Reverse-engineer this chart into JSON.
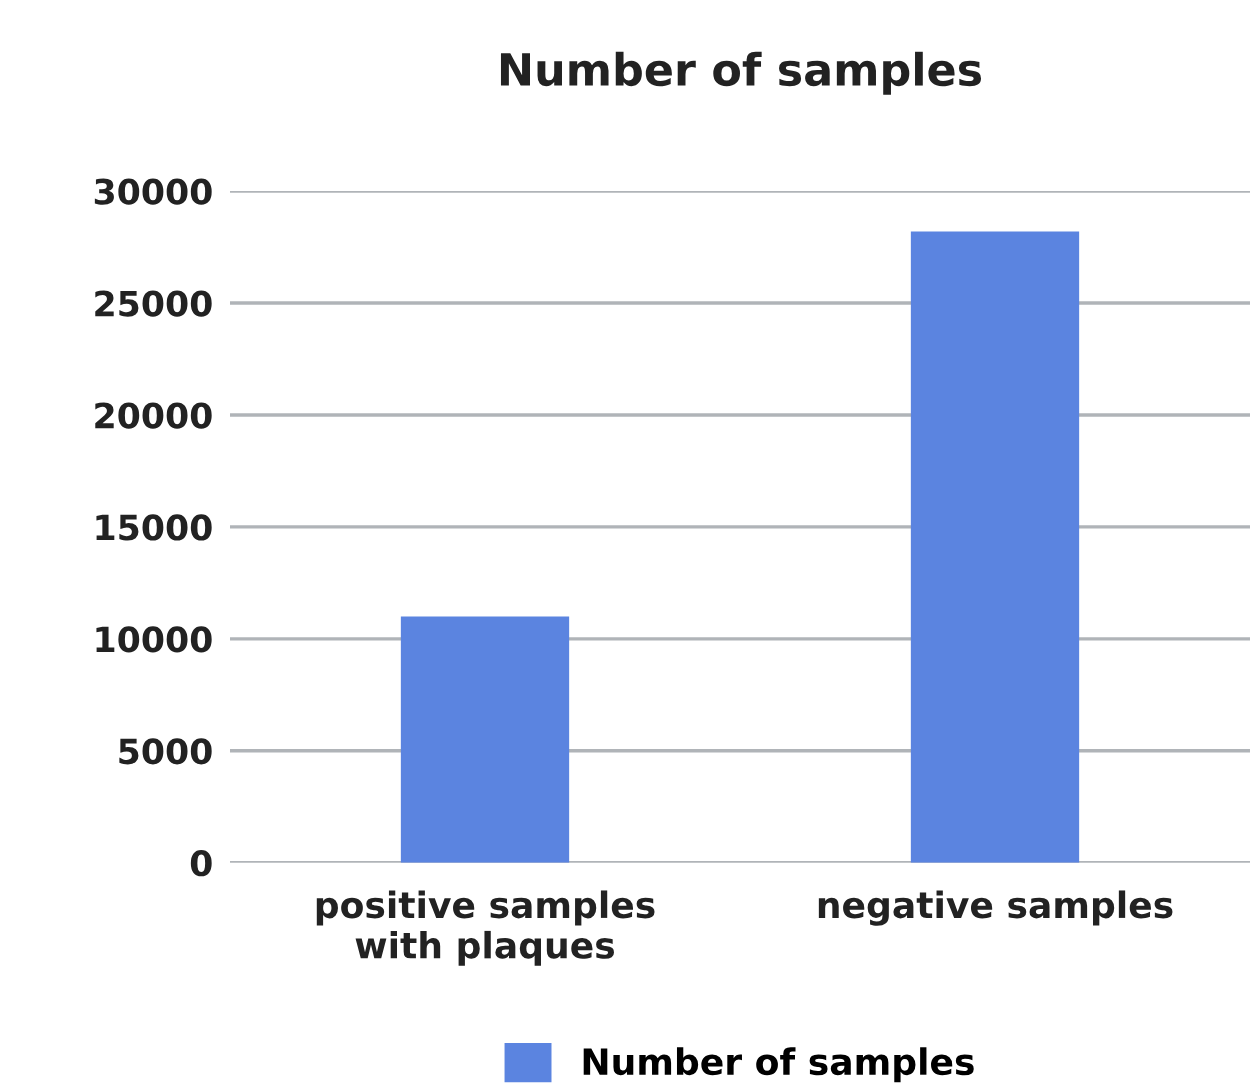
{
  "chart_data": {
    "type": "bar",
    "title": "Number of samples",
    "categories": [
      "positive samples with plaques",
      "negative samples"
    ],
    "series": [
      {
        "name": "Number of samples",
        "color": "#5b84e0",
        "values": [
          11000,
          28200
        ]
      }
    ],
    "ylim": [
      0,
      30000
    ],
    "yticks": [
      0,
      5000,
      10000,
      15000,
      20000,
      25000,
      30000
    ],
    "grid": "y",
    "legend": "bottom"
  }
}
